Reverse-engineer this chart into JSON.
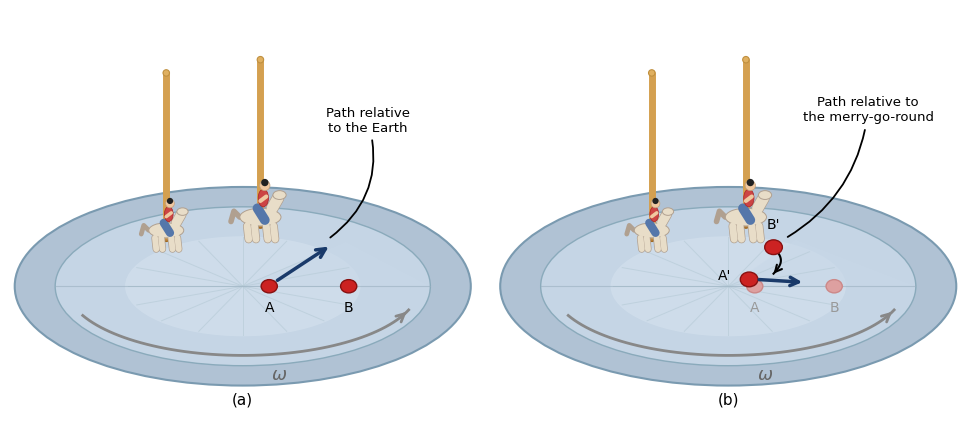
{
  "fig_width": 9.71,
  "fig_height": 4.46,
  "bg_color": "#ffffff",
  "disk_outer_color": "#b0c2d4",
  "disk_inner_color": "#c5d5e5",
  "disk_center_color": "#d5e2ee",
  "disk_rim_color": "#8aabb8",
  "ball_color": "#cc2222",
  "ball_faded_color": "#dda0a0",
  "arrow_color": "#1a3a6a",
  "omega_arrow_color": "#888888",
  "label_a": "(a)",
  "label_b": "(b)",
  "text_path_earth": "Path relative\nto the Earth",
  "text_path_merry": "Path relative to\nthe merry-go-round",
  "omega_symbol": "ω",
  "pole_color": "#d4a050",
  "spoke_color": "#aabbcc",
  "horse_color": "#e8ddc8",
  "horse_edge": "#b0a090",
  "rider_shirt": "#cc4444",
  "rider_skin": "#f0c8a0",
  "rider_pants": "#5577aa",
  "rider_hair": "#222222"
}
